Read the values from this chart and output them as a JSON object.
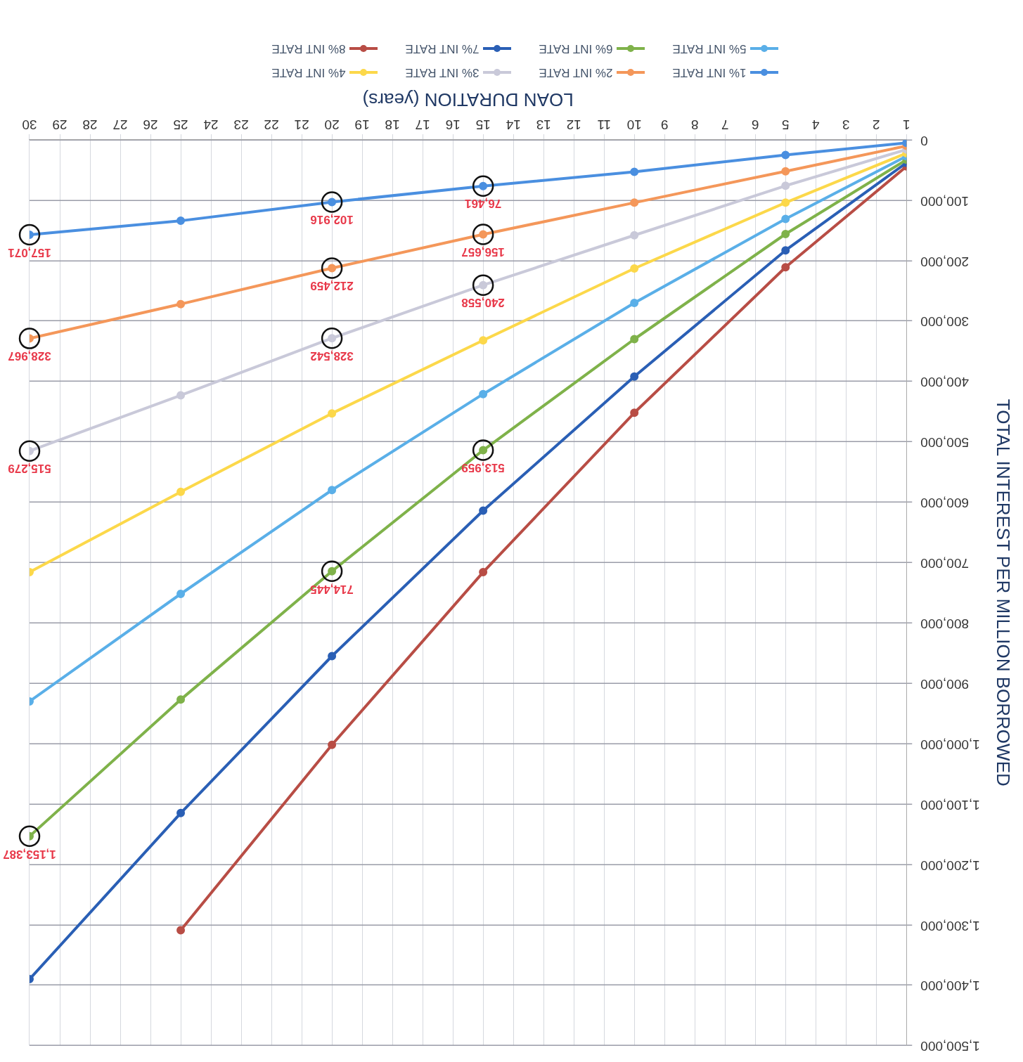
{
  "chart_data": {
    "type": "line",
    "xlabel": "LOAN DURATION (years)",
    "ylabel": "TOTAL INTEREST PER MILLION BORROWED",
    "xlim": [
      30,
      1
    ],
    "xticks": [
      1,
      2,
      3,
      4,
      5,
      6,
      7,
      8,
      9,
      10,
      11,
      12,
      13,
      14,
      15,
      16,
      17,
      18,
      19,
      20,
      21,
      22,
      23,
      24,
      25,
      26,
      27,
      28,
      29,
      30
    ],
    "ylim": [
      1500000,
      0
    ],
    "yticks": [
      0,
      {
        "value": 100000,
        "label": "100,000"
      },
      {
        "value": 200000,
        "label": "200,000"
      },
      {
        "value": 300000,
        "label": "300,000"
      },
      {
        "value": 400000,
        "label": "400,000"
      },
      {
        "value": 500000,
        "label": "500,000"
      },
      {
        "value": 600000,
        "label": "600,000"
      },
      {
        "value": 700000,
        "label": "700,000"
      },
      {
        "value": 800000,
        "label": "800,000"
      },
      {
        "value": 900000,
        "label": "900,000"
      },
      {
        "value": 1000000,
        "label": "1,000,000"
      },
      {
        "value": 1100000,
        "label": "1,100,000"
      },
      {
        "value": 1200000,
        "label": "1,200,000"
      },
      {
        "value": 1300000,
        "label": "1,300,000"
      },
      {
        "value": 1400000,
        "label": "1,400,000"
      },
      {
        "value": 1500000,
        "label": "1,500,000"
      }
    ],
    "x": [
      1,
      5,
      10,
      15,
      20,
      25,
      30
    ],
    "series": [
      {
        "name": "1% INT RATE",
        "color": "#4a8fe0",
        "values": [
          5000,
          25000,
          53000,
          76461,
          102916,
          134000,
          157071
        ]
      },
      {
        "name": "2% INT RATE",
        "color": "#f4975a",
        "values": [
          10000,
          52000,
          104000,
          156657,
          212459,
          272000,
          328967
        ]
      },
      {
        "name": "3% INT RATE",
        "color": "#c9c9d9",
        "values": [
          16000,
          76000,
          158000,
          240558,
          328542,
          423000,
          515279
        ]
      },
      {
        "name": "4% INT RATE",
        "color": "#fcd84a",
        "values": [
          22000,
          104000,
          213000,
          332000,
          453000,
          583000,
          716000
        ]
      },
      {
        "name": "5% INT RATE",
        "color": "#5aafe8",
        "values": [
          27000,
          131000,
          270000,
          421000,
          580000,
          752000,
          930000
        ]
      },
      {
        "name": "6% INT RATE",
        "color": "#7fb24a",
        "values": [
          33000,
          156000,
          330000,
          513959,
          714445,
          927000,
          1153387
        ]
      },
      {
        "name": "7% INT RATE",
        "color": "#2a5fb5",
        "values": [
          38000,
          183000,
          392000,
          614000,
          855000,
          1115000,
          1390000
        ]
      },
      {
        "name": "8% INT RATE",
        "color": "#b84d45",
        "values": [
          44000,
          211000,
          452000,
          716000,
          1002000,
          1309000,
          null
        ]
      }
    ],
    "annotations": [
      {
        "text": "76,461",
        "x": 15,
        "y": 76461
      },
      {
        "text": "102,916",
        "x": 20,
        "y": 102916
      },
      {
        "text": "157,071",
        "x": 30,
        "y": 157071
      },
      {
        "text": "156,657",
        "x": 15,
        "y": 156657
      },
      {
        "text": "212,459",
        "x": 20,
        "y": 212459
      },
      {
        "text": "328,967",
        "x": 30,
        "y": 328967
      },
      {
        "text": "240,558",
        "x": 15,
        "y": 240558
      },
      {
        "text": "328,542",
        "x": 20,
        "y": 328542
      },
      {
        "text": "515,279",
        "x": 30,
        "y": 515279
      },
      {
        "text": "513,959",
        "x": 15,
        "y": 513959
      },
      {
        "text": "714,445",
        "x": 20,
        "y": 714445
      },
      {
        "text": "1,153,387",
        "x": 30,
        "y": 1153387
      }
    ],
    "grid": true,
    "legend": "top",
    "marker": "circle",
    "line_style": "solid"
  }
}
